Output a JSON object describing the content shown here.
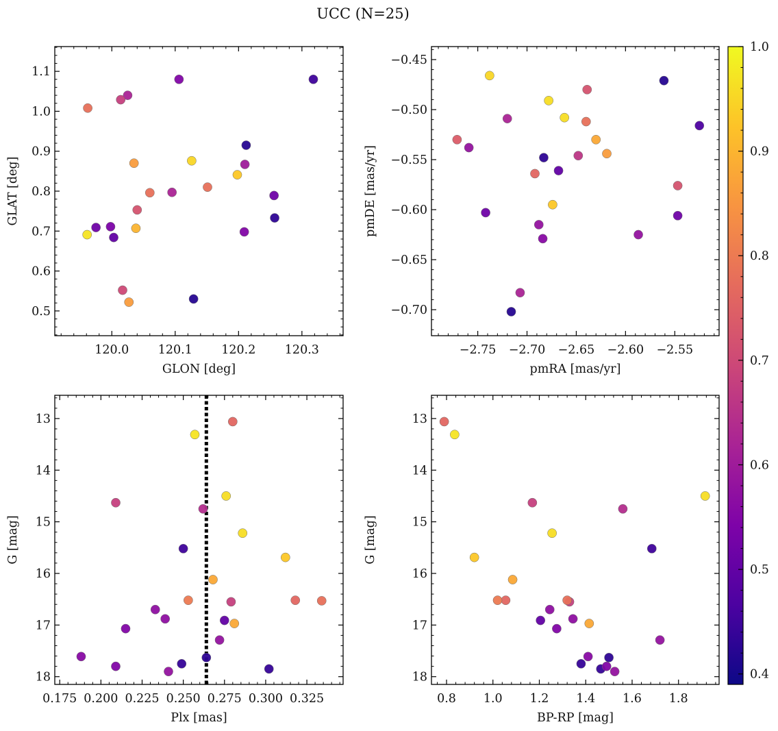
{
  "figure": {
    "title": "UCC (N=25)"
  },
  "colorbar": {
    "range": [
      0.39,
      1.0
    ],
    "ticks": [
      "0.4",
      "0.5",
      "0.6",
      "0.7",
      "0.8",
      "0.9",
      "1.0"
    ],
    "tick_values": [
      0.4,
      0.5,
      0.6,
      0.7,
      0.8,
      0.9,
      1.0
    ],
    "colormap": "plasma"
  },
  "chart_data": [
    {
      "type": "scatter",
      "xlabel": "GLON [deg]",
      "ylabel": "GLAT [deg]",
      "xlim": [
        119.91,
        120.365
      ],
      "ylim": [
        0.438,
        1.162
      ],
      "xticks": [
        120.0,
        120.1,
        120.2,
        120.3
      ],
      "xtick_labels": [
        "120.0",
        "120.1",
        "120.2",
        "120.3"
      ],
      "yticks": [
        0.5,
        0.6,
        0.7,
        0.8,
        0.9,
        1.0,
        1.1
      ],
      "ytick_labels": [
        "0.5",
        "0.6",
        "0.7",
        "0.8",
        "0.9",
        "1.0",
        "1.1"
      ],
      "points": [
        {
          "x": 119.962,
          "y": 1.008,
          "c": 0.78
        },
        {
          "x": 120.014,
          "y": 1.029,
          "c": 0.68
        },
        {
          "x": 120.025,
          "y": 1.04,
          "c": 0.62
        },
        {
          "x": 120.106,
          "y": 1.08,
          "c": 0.55
        },
        {
          "x": 120.318,
          "y": 1.08,
          "c": 0.45
        },
        {
          "x": 120.212,
          "y": 0.915,
          "c": 0.42
        },
        {
          "x": 120.035,
          "y": 0.87,
          "c": 0.86
        },
        {
          "x": 120.126,
          "y": 0.876,
          "c": 0.95
        },
        {
          "x": 120.21,
          "y": 0.867,
          "c": 0.6
        },
        {
          "x": 120.198,
          "y": 0.841,
          "c": 0.93
        },
        {
          "x": 120.151,
          "y": 0.81,
          "c": 0.78
        },
        {
          "x": 120.06,
          "y": 0.796,
          "c": 0.78
        },
        {
          "x": 120.095,
          "y": 0.797,
          "c": 0.62
        },
        {
          "x": 120.256,
          "y": 0.789,
          "c": 0.52
        },
        {
          "x": 120.04,
          "y": 0.753,
          "c": 0.72
        },
        {
          "x": 120.257,
          "y": 0.733,
          "c": 0.43
        },
        {
          "x": 119.975,
          "y": 0.709,
          "c": 0.52
        },
        {
          "x": 119.998,
          "y": 0.711,
          "c": 0.54
        },
        {
          "x": 120.038,
          "y": 0.707,
          "c": 0.9
        },
        {
          "x": 120.209,
          "y": 0.698,
          "c": 0.55
        },
        {
          "x": 119.961,
          "y": 0.691,
          "c": 0.97
        },
        {
          "x": 120.003,
          "y": 0.684,
          "c": 0.5
        },
        {
          "x": 120.017,
          "y": 0.552,
          "c": 0.7
        },
        {
          "x": 120.027,
          "y": 0.522,
          "c": 0.86
        },
        {
          "x": 120.129,
          "y": 0.53,
          "c": 0.42
        }
      ]
    },
    {
      "type": "scatter",
      "xlabel": "pmRA [mas/yr]",
      "ylabel": "pmDE [mas/yr]",
      "xlim": [
        -2.797,
        -2.505
      ],
      "ylim": [
        -0.726,
        -0.437
      ],
      "xticks": [
        -2.75,
        -2.7,
        -2.65,
        -2.6,
        -2.55
      ],
      "xtick_labels": [
        "−2.75",
        "−2.70",
        "−2.65",
        "−2.60",
        "−2.55"
      ],
      "yticks": [
        -0.7,
        -0.65,
        -0.6,
        -0.55,
        -0.5,
        -0.45
      ],
      "ytick_labels": [
        "−0.70",
        "−0.65",
        "−0.60",
        "−0.55",
        "−0.50",
        "−0.45"
      ],
      "points": [
        {
          "x": -2.738,
          "y": -0.466,
          "c": 0.95
        },
        {
          "x": -2.561,
          "y": -0.471,
          "c": 0.42
        },
        {
          "x": -2.639,
          "y": -0.48,
          "c": 0.72
        },
        {
          "x": -2.678,
          "y": -0.491,
          "c": 0.96
        },
        {
          "x": -2.72,
          "y": -0.509,
          "c": 0.62
        },
        {
          "x": -2.662,
          "y": -0.508,
          "c": 0.96
        },
        {
          "x": -2.64,
          "y": -0.512,
          "c": 0.78
        },
        {
          "x": -2.525,
          "y": -0.516,
          "c": 0.47
        },
        {
          "x": -2.771,
          "y": -0.53,
          "c": 0.74
        },
        {
          "x": -2.63,
          "y": -0.53,
          "c": 0.88
        },
        {
          "x": -2.759,
          "y": -0.538,
          "c": 0.58
        },
        {
          "x": -2.619,
          "y": -0.544,
          "c": 0.86
        },
        {
          "x": -2.648,
          "y": -0.546,
          "c": 0.66
        },
        {
          "x": -2.683,
          "y": -0.548,
          "c": 0.43
        },
        {
          "x": -2.668,
          "y": -0.561,
          "c": 0.5
        },
        {
          "x": -2.692,
          "y": -0.564,
          "c": 0.76
        },
        {
          "x": -2.547,
          "y": -0.576,
          "c": 0.72
        },
        {
          "x": -2.674,
          "y": -0.595,
          "c": 0.93
        },
        {
          "x": -2.742,
          "y": -0.603,
          "c": 0.52
        },
        {
          "x": -2.547,
          "y": -0.606,
          "c": 0.52
        },
        {
          "x": -2.688,
          "y": -0.615,
          "c": 0.58
        },
        {
          "x": -2.587,
          "y": -0.625,
          "c": 0.58
        },
        {
          "x": -2.684,
          "y": -0.629,
          "c": 0.56
        },
        {
          "x": -2.707,
          "y": -0.683,
          "c": 0.62
        },
        {
          "x": -2.716,
          "y": -0.702,
          "c": 0.42
        }
      ]
    },
    {
      "type": "scatter",
      "xlabel": "Plx [mas]",
      "ylabel": "G [mag]",
      "xlim": [
        0.172,
        0.347
      ],
      "ylim": [
        18.15,
        12.55
      ],
      "y_inverted": true,
      "vline": {
        "x": 0.264,
        "style": "dotted"
      },
      "xticks": [
        0.175,
        0.2,
        0.225,
        0.25,
        0.275,
        0.3,
        0.325
      ],
      "xtick_labels": [
        "0.175",
        "0.200",
        "0.225",
        "0.250",
        "0.275",
        "0.300",
        "0.325"
      ],
      "yticks": [
        13,
        14,
        15,
        16,
        17,
        18
      ],
      "ytick_labels": [
        "13",
        "14",
        "15",
        "16",
        "17",
        "18"
      ],
      "points": [
        {
          "x": 0.28,
          "y": 13.06,
          "c": 0.76
        },
        {
          "x": 0.257,
          "y": 13.31,
          "c": 0.97
        },
        {
          "x": 0.276,
          "y": 14.5,
          "c": 0.96
        },
        {
          "x": 0.209,
          "y": 14.63,
          "c": 0.68
        },
        {
          "x": 0.262,
          "y": 14.75,
          "c": 0.64
        },
        {
          "x": 0.286,
          "y": 15.22,
          "c": 0.96
        },
        {
          "x": 0.25,
          "y": 15.52,
          "c": 0.45
        },
        {
          "x": 0.312,
          "y": 15.69,
          "c": 0.93
        },
        {
          "x": 0.268,
          "y": 16.12,
          "c": 0.88
        },
        {
          "x": 0.253,
          "y": 16.52,
          "c": 0.8
        },
        {
          "x": 0.318,
          "y": 16.52,
          "c": 0.76
        },
        {
          "x": 0.334,
          "y": 16.53,
          "c": 0.78
        },
        {
          "x": 0.279,
          "y": 16.55,
          "c": 0.68
        },
        {
          "x": 0.233,
          "y": 16.7,
          "c": 0.57
        },
        {
          "x": 0.239,
          "y": 16.88,
          "c": 0.57
        },
        {
          "x": 0.275,
          "y": 16.91,
          "c": 0.5
        },
        {
          "x": 0.281,
          "y": 16.97,
          "c": 0.88
        },
        {
          "x": 0.215,
          "y": 17.07,
          "c": 0.55
        },
        {
          "x": 0.272,
          "y": 17.29,
          "c": 0.58
        },
        {
          "x": 0.188,
          "y": 17.61,
          "c": 0.56
        },
        {
          "x": 0.264,
          "y": 17.63,
          "c": 0.43
        },
        {
          "x": 0.249,
          "y": 17.75,
          "c": 0.44
        },
        {
          "x": 0.209,
          "y": 17.8,
          "c": 0.55
        },
        {
          "x": 0.302,
          "y": 17.85,
          "c": 0.44
        },
        {
          "x": 0.241,
          "y": 17.9,
          "c": 0.58
        }
      ]
    },
    {
      "type": "scatter",
      "xlabel": "BP-RP [mag]",
      "ylabel": "G [mag]",
      "xlim": [
        0.735,
        1.975
      ],
      "ylim": [
        18.15,
        12.55
      ],
      "y_inverted": true,
      "xticks": [
        0.8,
        1.0,
        1.2,
        1.4,
        1.6,
        1.8
      ],
      "xtick_labels": [
        "0.8",
        "1.0",
        "1.2",
        "1.4",
        "1.6",
        "1.8"
      ],
      "yticks": [
        13,
        14,
        15,
        16,
        17,
        18
      ],
      "ytick_labels": [
        "13",
        "14",
        "15",
        "16",
        "17",
        "18"
      ],
      "points": [
        {
          "x": 0.79,
          "y": 13.06,
          "c": 0.76
        },
        {
          "x": 0.835,
          "y": 13.31,
          "c": 0.97
        },
        {
          "x": 1.915,
          "y": 14.5,
          "c": 0.96
        },
        {
          "x": 1.17,
          "y": 14.63,
          "c": 0.68
        },
        {
          "x": 1.56,
          "y": 14.75,
          "c": 0.64
        },
        {
          "x": 1.255,
          "y": 15.22,
          "c": 0.96
        },
        {
          "x": 1.685,
          "y": 15.52,
          "c": 0.45
        },
        {
          "x": 0.92,
          "y": 15.69,
          "c": 0.93
        },
        {
          "x": 1.085,
          "y": 16.12,
          "c": 0.88
        },
        {
          "x": 1.02,
          "y": 16.52,
          "c": 0.8
        },
        {
          "x": 1.055,
          "y": 16.52,
          "c": 0.76
        },
        {
          "x": 1.32,
          "y": 16.52,
          "c": 0.78
        },
        {
          "x": 1.33,
          "y": 16.55,
          "c": 0.68
        },
        {
          "x": 1.245,
          "y": 16.7,
          "c": 0.57
        },
        {
          "x": 1.345,
          "y": 16.88,
          "c": 0.57
        },
        {
          "x": 1.205,
          "y": 16.91,
          "c": 0.5
        },
        {
          "x": 1.415,
          "y": 16.97,
          "c": 0.88
        },
        {
          "x": 1.275,
          "y": 17.07,
          "c": 0.55
        },
        {
          "x": 1.72,
          "y": 17.29,
          "c": 0.58
        },
        {
          "x": 1.41,
          "y": 17.61,
          "c": 0.56
        },
        {
          "x": 1.5,
          "y": 17.63,
          "c": 0.43
        },
        {
          "x": 1.38,
          "y": 17.75,
          "c": 0.44
        },
        {
          "x": 1.49,
          "y": 17.8,
          "c": 0.55
        },
        {
          "x": 1.465,
          "y": 17.85,
          "c": 0.44
        },
        {
          "x": 1.525,
          "y": 17.9,
          "c": 0.58
        }
      ]
    }
  ]
}
